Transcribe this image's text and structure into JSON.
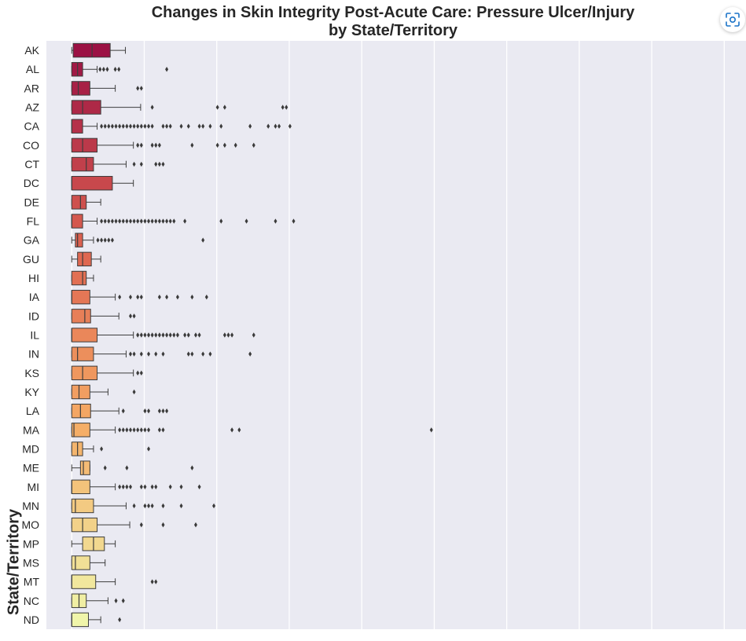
{
  "chart_data": {
    "type": "boxplot",
    "orientation": "horizontal",
    "title_line1": "Changes in Skin Integrity Post-Acute Care: Pressure Ulcer/Injury",
    "title_line2": "by State/Territory",
    "ylabel": "State/Territory",
    "xlabel": "",
    "grid": true,
    "palette": "yellow-orange-red gradient",
    "colors": {
      "plot_background": "#eaeaf2",
      "grid": "#ffffff",
      "edge": "#3d3d3d"
    },
    "x_range": [
      -3.5,
      93
    ],
    "boxes": [
      {
        "state": "AK",
        "min": 0,
        "q1": 0.2,
        "median": 2.8,
        "q3": 5.3,
        "max": 7.4,
        "outliers": []
      },
      {
        "state": "AL",
        "min": 0,
        "q1": 0,
        "median": 0.8,
        "q3": 1.5,
        "max": 3.5,
        "outliers": [
          3.9,
          4.4,
          4.9,
          6.0,
          6.5,
          13.1
        ]
      },
      {
        "state": "AR",
        "min": 0,
        "q1": 0,
        "median": 0.9,
        "q3": 2.5,
        "max": 6.0,
        "outliers": [
          9.1,
          9.6
        ]
      },
      {
        "state": "AZ",
        "min": 0,
        "q1": 0,
        "median": 1.5,
        "q3": 4.0,
        "max": 9.5,
        "outliers": [
          11.1,
          20.1,
          21.1,
          29.1,
          29.6
        ]
      },
      {
        "state": "CA",
        "min": 0,
        "q1": 0,
        "median": 0,
        "q3": 1.5,
        "max": 3.5,
        "outliers": [
          4.1,
          4.6,
          5.1,
          5.6,
          6.1,
          6.6,
          7.1,
          7.6,
          8.1,
          8.6,
          9.1,
          9.6,
          10.1,
          10.6,
          11.1,
          12.6,
          13.1,
          13.6,
          15.1,
          16.1,
          17.6,
          18.1,
          19.1,
          20.6,
          24.6,
          27.1,
          28.1,
          28.6,
          30.1
        ]
      },
      {
        "state": "CO",
        "min": 0,
        "q1": 0,
        "median": 1.5,
        "q3": 3.5,
        "max": 8.5,
        "outliers": [
          9.1,
          9.6,
          11.1,
          11.6,
          12.1,
          16.6,
          20.1,
          21.1,
          22.6,
          25.1
        ]
      },
      {
        "state": "CT",
        "min": 0,
        "q1": 0,
        "median": 2.0,
        "q3": 3.0,
        "max": 7.5,
        "outliers": [
          8.6,
          9.6,
          11.6,
          12.1,
          12.6
        ]
      },
      {
        "state": "DC",
        "min": 0,
        "q1": 0,
        "median": 0,
        "q3": 5.6,
        "max": 8.5,
        "outliers": []
      },
      {
        "state": "DE",
        "min": 0,
        "q1": 0,
        "median": 1.2,
        "q3": 2.0,
        "max": 4.0,
        "outliers": []
      },
      {
        "state": "FL",
        "min": 0,
        "q1": 0,
        "median": 0,
        "q3": 1.5,
        "max": 3.5,
        "outliers": [
          4.1,
          4.6,
          5.1,
          5.6,
          6.1,
          6.6,
          7.1,
          7.6,
          8.1,
          8.6,
          9.1,
          9.6,
          10.1,
          10.6,
          11.1,
          11.6,
          12.1,
          12.6,
          13.1,
          13.6,
          14.1,
          15.6,
          20.6,
          24.1,
          28.1,
          30.6
        ]
      },
      {
        "state": "GA",
        "min": 0,
        "q1": 0.5,
        "median": 0.8,
        "q3": 1.5,
        "max": 3.0,
        "outliers": [
          3.6,
          4.1,
          4.6,
          5.1,
          5.6,
          18.1
        ]
      },
      {
        "state": "GU",
        "min": 0,
        "q1": 0.8,
        "median": 1.5,
        "q3": 2.7,
        "max": 4.0,
        "outliers": []
      },
      {
        "state": "HI",
        "min": 0,
        "q1": 0,
        "median": 1.5,
        "q3": 2.0,
        "max": 3.0,
        "outliers": []
      },
      {
        "state": "IA",
        "min": 0,
        "q1": 0,
        "median": 0,
        "q3": 2.5,
        "max": 6.0,
        "outliers": [
          6.6,
          8.1,
          9.1,
          9.6,
          12.1,
          13.1,
          14.6,
          16.6,
          18.6
        ]
      },
      {
        "state": "ID",
        "min": 0,
        "q1": 0,
        "median": 1.8,
        "q3": 2.6,
        "max": 6.5,
        "outliers": [
          8.1,
          8.6
        ]
      },
      {
        "state": "IL",
        "min": 0,
        "q1": 0,
        "median": 0,
        "q3": 3.5,
        "max": 8.5,
        "outliers": [
          9.1,
          9.6,
          10.1,
          10.6,
          11.1,
          11.6,
          12.1,
          12.6,
          13.1,
          13.6,
          14.1,
          14.6,
          15.6,
          16.1,
          17.1,
          17.6,
          21.1,
          21.6,
          22.1,
          25.1
        ]
      },
      {
        "state": "IN",
        "min": 0,
        "q1": 0,
        "median": 0.8,
        "q3": 3.0,
        "max": 7.5,
        "outliers": [
          8.1,
          8.6,
          9.6,
          10.6,
          11.6,
          12.6,
          16.1,
          16.6,
          18.1,
          19.1,
          24.6
        ]
      },
      {
        "state": "KS",
        "min": 0,
        "q1": 0,
        "median": 1.5,
        "q3": 3.5,
        "max": 8.5,
        "outliers": [
          9.1,
          9.6
        ]
      },
      {
        "state": "KY",
        "min": 0,
        "q1": 0,
        "median": 1.0,
        "q3": 2.5,
        "max": 5.0,
        "outliers": [
          8.6
        ]
      },
      {
        "state": "LA",
        "min": 0,
        "q1": 0,
        "median": 1.2,
        "q3": 2.6,
        "max": 6.5,
        "outliers": [
          7.1,
          10.1,
          10.6,
          12.1,
          12.6,
          13.1
        ]
      },
      {
        "state": "MA",
        "min": 0,
        "q1": 0,
        "median": 0.3,
        "q3": 2.5,
        "max": 6.0,
        "outliers": [
          6.6,
          7.1,
          7.6,
          8.1,
          8.6,
          9.1,
          9.6,
          10.1,
          10.6,
          12.1,
          12.6,
          22.1,
          23.1,
          49.6
        ]
      },
      {
        "state": "MD",
        "min": 0,
        "q1": 0,
        "median": 0.8,
        "q3": 1.5,
        "max": 3.0,
        "outliers": [
          4.1,
          10.6
        ]
      },
      {
        "state": "ME",
        "min": 0,
        "q1": 1.2,
        "median": 1.6,
        "q3": 2.5,
        "max": 2.5,
        "outliers": [
          4.6,
          7.6,
          16.6
        ]
      },
      {
        "state": "MI",
        "min": 0,
        "q1": 0,
        "median": 0,
        "q3": 2.5,
        "max": 6.0,
        "outliers": [
          6.6,
          7.1,
          7.6,
          8.1,
          9.6,
          10.1,
          11.1,
          11.6,
          13.6,
          15.1,
          17.6
        ]
      },
      {
        "state": "MN",
        "min": 0,
        "q1": 0,
        "median": 0.5,
        "q3": 3.0,
        "max": 7.5,
        "outliers": [
          8.6,
          10.1,
          10.6,
          11.1,
          12.6,
          15.1,
          19.6
        ]
      },
      {
        "state": "MO",
        "min": 0,
        "q1": 0,
        "median": 1.5,
        "q3": 3.5,
        "max": 8.0,
        "outliers": [
          9.6,
          12.6,
          17.1
        ]
      },
      {
        "state": "MP",
        "min": 0,
        "q1": 1.5,
        "median": 3.0,
        "q3": 4.5,
        "max": 6.0,
        "outliers": []
      },
      {
        "state": "MS",
        "min": 0,
        "q1": 0,
        "median": 0.5,
        "q3": 2.5,
        "max": 4.6,
        "outliers": []
      },
      {
        "state": "MT",
        "min": 0,
        "q1": 0,
        "median": 0,
        "q3": 3.3,
        "max": 6.0,
        "outliers": [
          11.1,
          11.6
        ]
      },
      {
        "state": "NC",
        "min": 0,
        "q1": 0,
        "median": 1.0,
        "q3": 2.0,
        "max": 5.0,
        "outliers": [
          6.1,
          7.1
        ]
      },
      {
        "state": "ND",
        "min": 0,
        "q1": 0,
        "median": 0,
        "q3": 2.3,
        "max": 4.0,
        "outliers": [
          6.6
        ]
      }
    ]
  }
}
